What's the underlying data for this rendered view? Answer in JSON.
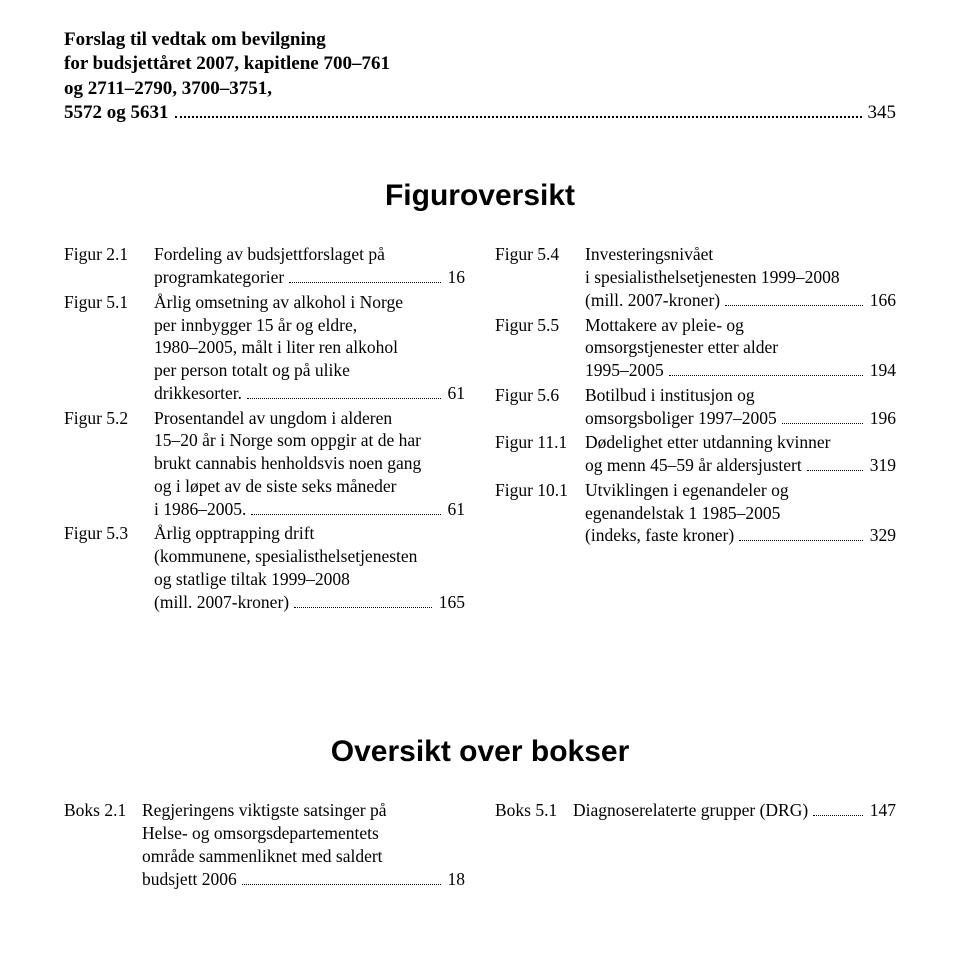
{
  "top": {
    "l1": "Forslag til vedtak om bevilgning",
    "l2": "for budsjettåret 2007, kapitlene 700–761",
    "l3": "og 2711–2790, 3700–3751,",
    "l4_label": "5572 og 5631",
    "l4_page": "345"
  },
  "figHeading": "Figuroversikt",
  "figLeft": [
    {
      "label": "Figur 2.1",
      "lines": [
        "Fordeling av budsjettforslaget på"
      ],
      "lastText": "programkategorier",
      "page": "16"
    },
    {
      "label": "Figur 5.1",
      "lines": [
        "Årlig omsetning av alkohol i Norge",
        "per innbygger 15 år og eldre,",
        "1980–2005, målt i liter ren alkohol",
        "per person totalt og på ulike"
      ],
      "lastText": "drikkesorter. ",
      "page": "61"
    },
    {
      "label": "Figur 5.2",
      "lines": [
        "Prosentandel av ungdom i alderen",
        "15–20 år i Norge som oppgir at de har",
        "brukt cannabis henholdsvis noen gang",
        "og i løpet av de siste seks måneder"
      ],
      "lastText": "i 1986–2005. ",
      "page": "61"
    },
    {
      "label": "Figur 5.3",
      "lines": [
        "Årlig opptrapping drift",
        "(kommunene, spesialisthelsetjenesten",
        "og statlige tiltak 1999–2008"
      ],
      "lastText": "(mill. 2007-kroner)",
      "page": "165"
    }
  ],
  "figRight": [
    {
      "label": "Figur 5.4",
      "lines": [
        "Investeringsnivået",
        "i spesialisthelsetjenesten 1999–2008"
      ],
      "lastText": "(mill. 2007-kroner)",
      "page": "166"
    },
    {
      "label": "Figur 5.5",
      "lines": [
        "Mottakere av pleie- og",
        "omsorgstjenester etter alder"
      ],
      "lastText": "1995–2005",
      "page": "194"
    },
    {
      "label": "Figur 5.6",
      "lines": [
        "Botilbud i institusjon og"
      ],
      "lastText": "omsorgsboliger 1997–2005",
      "page": "196"
    },
    {
      "label": "Figur 11.1",
      "lines": [
        "Dødelighet etter utdanning kvinner"
      ],
      "lastText": "og menn 45–59 år aldersjustert",
      "page": "319"
    },
    {
      "label": "Figur 10.1",
      "lines": [
        "Utviklingen i egenandeler og",
        "egenandelstak 1 1985–2005"
      ],
      "lastText": "(indeks, faste kroner)",
      "page": "329"
    }
  ],
  "boksHeading": "Oversikt over bokser",
  "boksLeft": [
    {
      "label": "Boks 2.1",
      "lines": [
        "Regjeringens viktigste satsinger på",
        "Helse- og omsorgsdepartementets",
        "område sammenliknet med saldert"
      ],
      "lastText": "budsjett 2006",
      "page": "18"
    }
  ],
  "boksRight": [
    {
      "label": "Boks 5.1",
      "lines": [],
      "lastText": "Diagnoserelaterte grupper (DRG)",
      "page": "147"
    }
  ]
}
